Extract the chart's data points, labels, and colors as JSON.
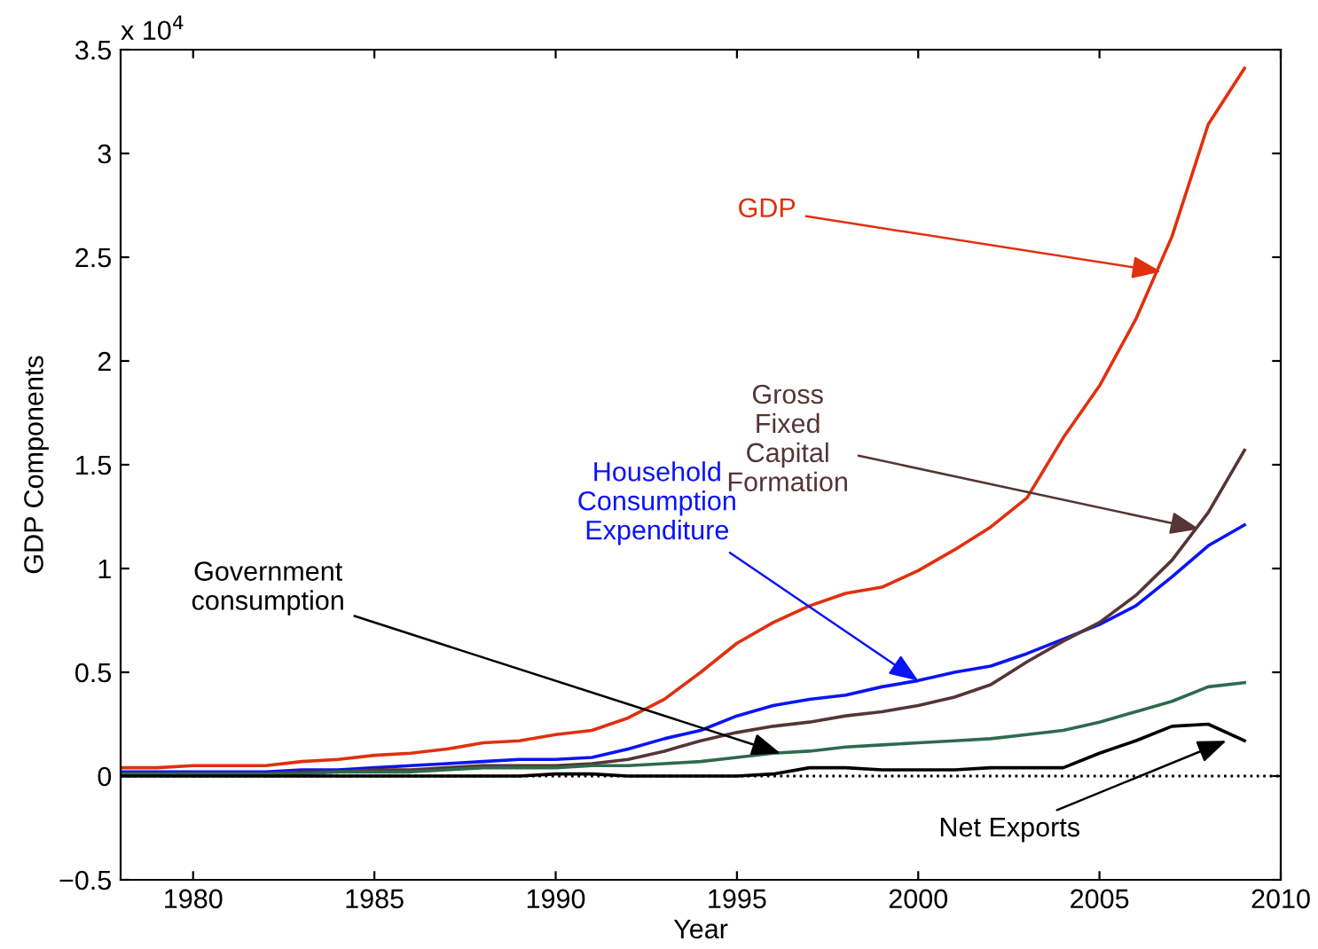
{
  "chart_data": {
    "type": "line",
    "xlabel": "Year",
    "ylabel": "GDP Components",
    "x": [
      1978,
      1979,
      1980,
      1981,
      1982,
      1983,
      1984,
      1985,
      1986,
      1987,
      1988,
      1989,
      1990,
      1991,
      1992,
      1993,
      1994,
      1995,
      1996,
      1997,
      1998,
      1999,
      2000,
      2001,
      2002,
      2003,
      2004,
      2005,
      2006,
      2007,
      2008,
      2009
    ],
    "series": [
      {
        "color": "#e0300e",
        "values": [
          0.04,
          0.04,
          0.05,
          0.05,
          0.05,
          0.07,
          0.08,
          0.1,
          0.11,
          0.13,
          0.16,
          0.17,
          0.2,
          0.22,
          0.28,
          0.37,
          0.5,
          0.64,
          0.74,
          0.82,
          0.88,
          0.91,
          0.99,
          1.09,
          1.2,
          1.34,
          1.63,
          1.88,
          2.2,
          2.6,
          3.14,
          3.41
        ]
      },
      {
        "color": "#0a14f5",
        "values": [
          0.02,
          0.02,
          0.02,
          0.02,
          0.02,
          0.03,
          0.03,
          0.04,
          0.05,
          0.06,
          0.07,
          0.08,
          0.08,
          0.09,
          0.13,
          0.18,
          0.22,
          0.29,
          0.34,
          0.37,
          0.39,
          0.43,
          0.46,
          0.5,
          0.53,
          0.59,
          0.66,
          0.73,
          0.82,
          0.96,
          1.11,
          1.21
        ]
      },
      {
        "color": "#553535",
        "values": [
          0.01,
          0.01,
          0.01,
          0.01,
          0.01,
          0.02,
          0.02,
          0.03,
          0.03,
          0.04,
          0.05,
          0.05,
          0.05,
          0.06,
          0.08,
          0.12,
          0.17,
          0.21,
          0.24,
          0.26,
          0.29,
          0.31,
          0.34,
          0.38,
          0.44,
          0.55,
          0.65,
          0.74,
          0.87,
          1.04,
          1.27,
          1.57
        ]
      },
      {
        "color": "#2e6a4e",
        "values": [
          0.01,
          0.01,
          0.01,
          0.01,
          0.01,
          0.01,
          0.02,
          0.02,
          0.02,
          0.03,
          0.04,
          0.04,
          0.04,
          0.05,
          0.05,
          0.06,
          0.07,
          0.09,
          0.11,
          0.12,
          0.14,
          0.15,
          0.16,
          0.17,
          0.18,
          0.2,
          0.22,
          0.26,
          0.31,
          0.36,
          0.43,
          0.45
        ]
      },
      {
        "color": "#000000",
        "values": [
          0.0,
          0.0,
          0.0,
          0.0,
          0.0,
          0.0,
          0.0,
          0.0,
          0.0,
          0.0,
          0.0,
          0.0,
          0.01,
          0.01,
          0.0,
          0.0,
          0.0,
          0.0,
          0.01,
          0.04,
          0.04,
          0.03,
          0.03,
          0.03,
          0.04,
          0.04,
          0.04,
          0.11,
          0.17,
          0.24,
          0.25,
          0.17
        ]
      }
    ],
    "xlim": [
      1978,
      2010
    ],
    "xticks": [
      1980,
      1985,
      1990,
      1995,
      2000,
      2005,
      2010
    ],
    "ylim": [
      -0.5,
      3.5
    ],
    "yticks": [
      {
        "value": -0.5,
        "label": "−0.5"
      },
      0,
      0.5,
      1,
      1.5,
      2,
      2.5,
      3,
      3.5
    ],
    "ref_lines": [
      {
        "axis": "y",
        "value": 0,
        "color": "#000000",
        "line_style": "dotted"
      }
    ],
    "annotations": [
      {
        "text": "GDP",
        "x": 2006.7,
        "y": 2.43
      },
      {
        "text": "Household\nConsumption\nExpenditure",
        "x": 2000.0,
        "y": 0.46
      },
      {
        "text": "Gross\nFixed\nCapital\nFormation",
        "x": 2007.75,
        "y": 1.19
      },
      {
        "text": "Government\nconsumption",
        "x": 1996.2,
        "y": 0.11
      },
      {
        "text": "Net Exports",
        "x": 2008.5,
        "y": 0.17
      },
      "x 10$^{4}$"
    ],
    "grid": false,
    "legend": false,
    "marker": "none",
    "line_style": "solid"
  }
}
